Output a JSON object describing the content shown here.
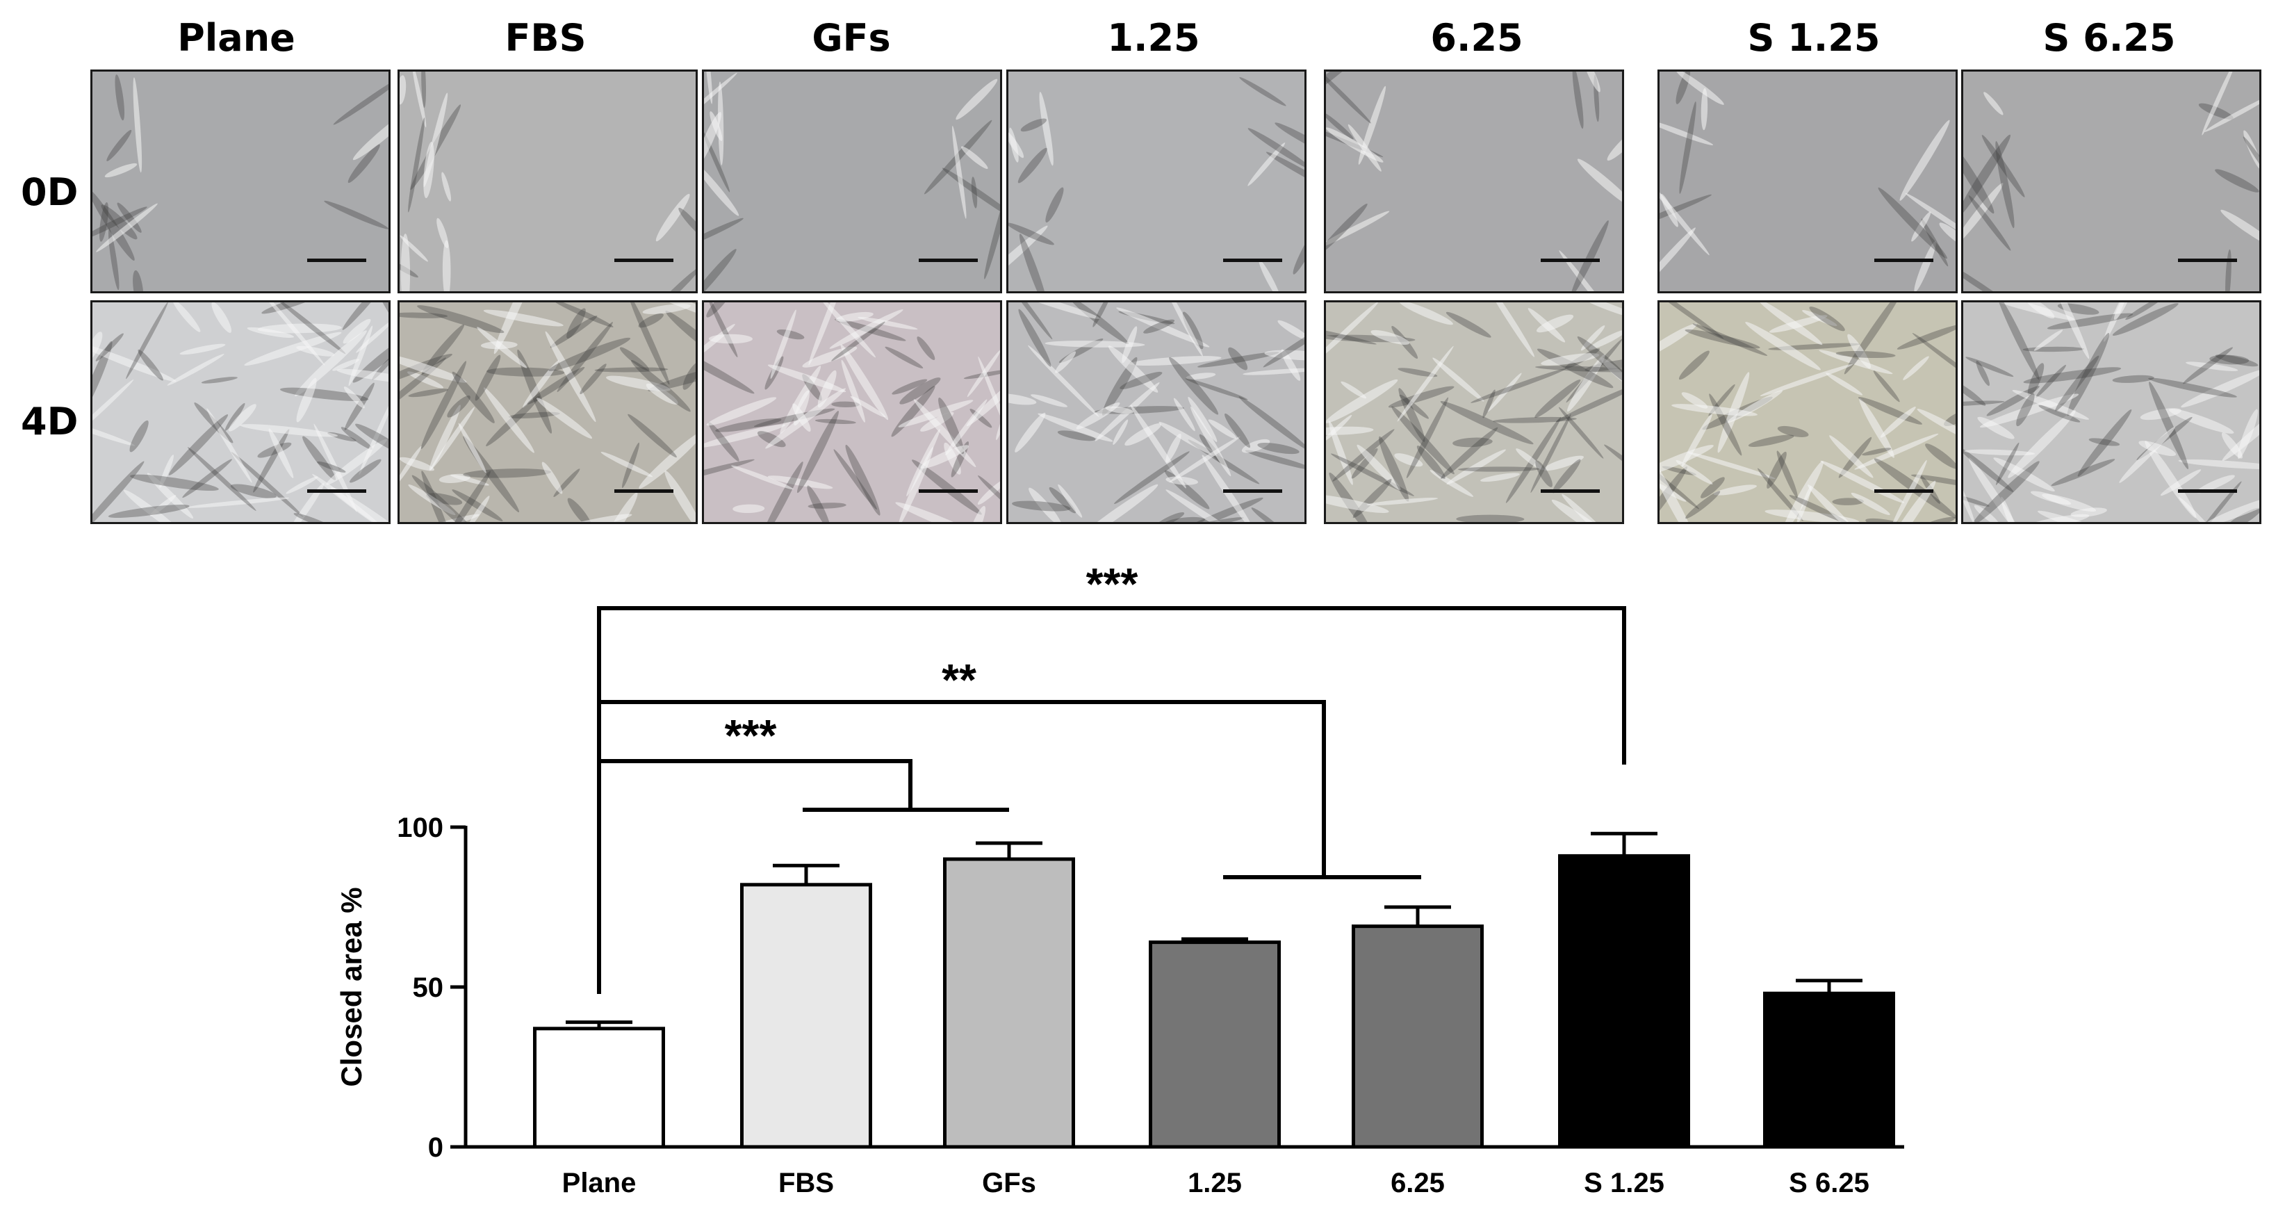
{
  "panels": {
    "columns": [
      "Plane",
      "FBS",
      "GFs",
      "1.25",
      "6.25",
      "S 1.25",
      "S 6.25"
    ],
    "rows": [
      "0D",
      "4D"
    ],
    "tint_0d": [
      "#a9aaac",
      "#b4b4b4",
      "#a8a9ab",
      "#b2b3b5",
      "#aaaaac",
      "#a6a6a8",
      "#aaaaab"
    ],
    "tint_4d": [
      "#cfd0d2",
      "#b9b6ad",
      "#c9bfc4",
      "#bcbcbe",
      "#c2c1b8",
      "#c6c4b3",
      "#c4c4c4"
    ]
  },
  "chart_data": {
    "type": "bar",
    "categories": [
      "Plane",
      "FBS",
      "GFs",
      "1.25",
      "6.25",
      "S 1.25",
      "S 6.25"
    ],
    "values": [
      37,
      82,
      90,
      64,
      69,
      91,
      48
    ],
    "errors": [
      2,
      6,
      5,
      1,
      6,
      7,
      4
    ],
    "bar_colors": [
      "#ffffff",
      "#e8e8e8",
      "#bdbdbd",
      "#757575",
      "#737373",
      "#000000",
      "#000000"
    ],
    "ylabel": "Closed area %",
    "ylim": [
      0,
      100
    ],
    "yticks": [
      0,
      50,
      100
    ],
    "significance": [
      {
        "label": "***",
        "from": "Plane",
        "to_group": [
          "FBS",
          "GFs"
        ]
      },
      {
        "label": "**",
        "from": "Plane",
        "to_group": [
          "1.25",
          "6.25"
        ]
      },
      {
        "label": "***",
        "from": "Plane",
        "to_group": [
          "S 1.25"
        ]
      }
    ]
  }
}
